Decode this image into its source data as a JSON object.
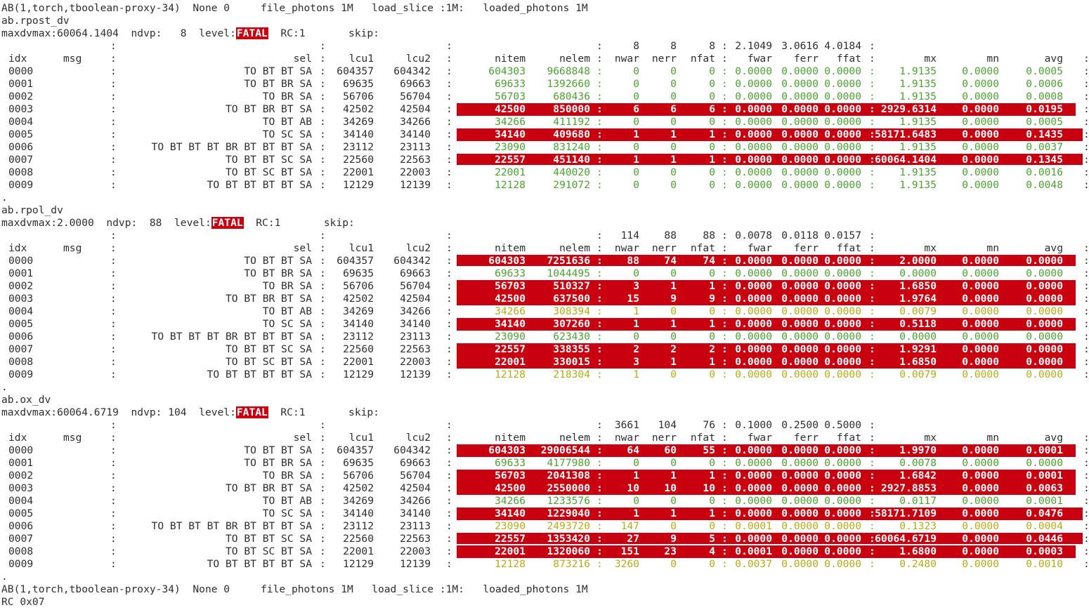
{
  "header": {
    "text": "AB(1,torch,tboolean-proxy-34)  None 0     file_photons 1M   load_slice :1M:   loaded_photons 1M"
  },
  "footer": {
    "text": "AB(1,torch,tboolean-proxy-34)  None 0     file_photons 1M   load_slice :1M:   loaded_photons 1M",
    "rc": "RC 0x07"
  },
  "colors": {
    "fatal_bg": "#c8000f",
    "ok_text": "#4aa32e",
    "warn_text": "#b4ac16"
  },
  "columns": {
    "idx": "idx",
    "msg": "msg",
    "sel": "sel",
    "lcu1": "lcu1",
    "lcu2": "lcu2",
    "nitem": "nitem",
    "nelem": "nelem",
    "nwar": "nwar",
    "nerr": "nerr",
    "nfat": "nfat",
    "fwar": "fwar",
    "ferr": "ferr",
    "ffat": "ffat",
    "mx": "mx",
    "mn": "mn",
    "avg": "avg"
  },
  "sections": [
    {
      "name": "ab.rpost_dv",
      "summary_pre": "maxdvmax:60064.1404  ndvp:   8  level:",
      "level": "FATAL",
      "summary_post": "  RC:1       skip:",
      "limits": {
        "nwar": "8",
        "nerr": "8",
        "nfat": "8",
        "fwar": "2.1049",
        "ferr": "3.0616",
        "ffat": "4.0184"
      },
      "rows": [
        {
          "idx": "0000",
          "sel": "TO BT BT SA",
          "lcu1": "604357",
          "lcu2": "604342",
          "nitem": "604303",
          "nelem": "9668848",
          "nwar": "0",
          "nerr": "0",
          "nfat": "0",
          "fwar": "0.0000",
          "ferr": "0.0000",
          "ffat": "0.0000",
          "mx": "1.9135",
          "mn": "0.0000",
          "avg": "0.0005",
          "status": "ok"
        },
        {
          "idx": "0001",
          "sel": "TO BT BR SA",
          "lcu1": "69635",
          "lcu2": "69663",
          "nitem": "69633",
          "nelem": "1392660",
          "nwar": "0",
          "nerr": "0",
          "nfat": "0",
          "fwar": "0.0000",
          "ferr": "0.0000",
          "ffat": "0.0000",
          "mx": "1.9135",
          "mn": "0.0000",
          "avg": "0.0006",
          "status": "ok"
        },
        {
          "idx": "0002",
          "sel": "TO BR SA",
          "lcu1": "56706",
          "lcu2": "56704",
          "nitem": "56703",
          "nelem": "680436",
          "nwar": "0",
          "nerr": "0",
          "nfat": "0",
          "fwar": "0.0000",
          "ferr": "0.0000",
          "ffat": "0.0000",
          "mx": "1.9135",
          "mn": "0.0000",
          "avg": "0.0008",
          "status": "ok"
        },
        {
          "idx": "0003",
          "sel": "TO BT BR BT SA",
          "lcu1": "42502",
          "lcu2": "42504",
          "nitem": "42500",
          "nelem": "850000",
          "nwar": "6",
          "nerr": "6",
          "nfat": "6",
          "fwar": "0.0000",
          "ferr": "0.0000",
          "ffat": "0.0000",
          "mx": "2929.6314",
          "mn": "0.0000",
          "avg": "0.0195",
          "status": "fatal"
        },
        {
          "idx": "0004",
          "sel": "TO BT AB",
          "lcu1": "34269",
          "lcu2": "34266",
          "nitem": "34266",
          "nelem": "411192",
          "nwar": "0",
          "nerr": "0",
          "nfat": "0",
          "fwar": "0.0000",
          "ferr": "0.0000",
          "ffat": "0.0000",
          "mx": "1.9135",
          "mn": "0.0000",
          "avg": "0.0005",
          "status": "ok"
        },
        {
          "idx": "0005",
          "sel": "TO SC SA",
          "lcu1": "34140",
          "lcu2": "34140",
          "nitem": "34140",
          "nelem": "409680",
          "nwar": "1",
          "nerr": "1",
          "nfat": "1",
          "fwar": "0.0000",
          "ferr": "0.0000",
          "ffat": "0.0000",
          "mx": "58171.6483",
          "mn": "0.0000",
          "avg": "0.1435",
          "status": "fatal",
          "wide": true
        },
        {
          "idx": "0006",
          "sel": "TO BT BT BT BR BT BT BT SA",
          "lcu1": "23112",
          "lcu2": "23113",
          "nitem": "23090",
          "nelem": "831240",
          "nwar": "0",
          "nerr": "0",
          "nfat": "0",
          "fwar": "0.0000",
          "ferr": "0.0000",
          "ffat": "0.0000",
          "mx": "1.9135",
          "mn": "0.0000",
          "avg": "0.0037",
          "status": "ok"
        },
        {
          "idx": "0007",
          "sel": "TO BT BT SC SA",
          "lcu1": "22560",
          "lcu2": "22563",
          "nitem": "22557",
          "nelem": "451140",
          "nwar": "1",
          "nerr": "1",
          "nfat": "1",
          "fwar": "0.0000",
          "ferr": "0.0000",
          "ffat": "0.0000",
          "mx": "60064.1404",
          "mn": "0.0000",
          "avg": "0.1345",
          "status": "fatal",
          "wide": true,
          "uline": true
        },
        {
          "idx": "0008",
          "sel": "TO BT SC BT SA",
          "lcu1": "22001",
          "lcu2": "22003",
          "nitem": "22001",
          "nelem": "440020",
          "nwar": "0",
          "nerr": "0",
          "nfat": "0",
          "fwar": "0.0000",
          "ferr": "0.0000",
          "ffat": "0.0000",
          "mx": "1.9135",
          "mn": "0.0000",
          "avg": "0.0016",
          "status": "ok"
        },
        {
          "idx": "0009",
          "sel": "TO BT BT BT BT SA",
          "lcu1": "12129",
          "lcu2": "12139",
          "nitem": "12128",
          "nelem": "291072",
          "nwar": "0",
          "nerr": "0",
          "nfat": "0",
          "fwar": "0.0000",
          "ferr": "0.0000",
          "ffat": "0.0000",
          "mx": "1.9135",
          "mn": "0.0000",
          "avg": "0.0048",
          "status": "ok"
        }
      ]
    },
    {
      "name": "ab.rpol_dv",
      "summary_pre": "maxdvmax:2.0000  ndvp:  88  level:",
      "level": "FATAL",
      "summary_post": "  RC:1       skip:",
      "limits": {
        "nwar": "114",
        "nerr": "88",
        "nfat": "88",
        "fwar": "0.0078",
        "ferr": "0.0118",
        "ffat": "0.0157"
      },
      "rows": [
        {
          "idx": "0000",
          "sel": "TO BT BT SA",
          "lcu1": "604357",
          "lcu2": "604342",
          "nitem": "604303",
          "nelem": "7251636",
          "nwar": "88",
          "nerr": "74",
          "nfat": "74",
          "fwar": "0.0000",
          "ferr": "0.0000",
          "ffat": "0.0000",
          "mx": "2.0000",
          "mn": "0.0000",
          "avg": "0.0000",
          "status": "fatal",
          "uline": true
        },
        {
          "idx": "0001",
          "sel": "TO BT BR SA",
          "lcu1": "69635",
          "lcu2": "69663",
          "nitem": "69633",
          "nelem": "1044495",
          "nwar": "0",
          "nerr": "0",
          "nfat": "0",
          "fwar": "0.0000",
          "ferr": "0.0000",
          "ffat": "0.0000",
          "mx": "0.0000",
          "mn": "0.0000",
          "avg": "0.0000",
          "status": "ok"
        },
        {
          "idx": "0002",
          "sel": "TO BR SA",
          "lcu1": "56706",
          "lcu2": "56704",
          "nitem": "56703",
          "nelem": "510327",
          "nwar": "3",
          "nerr": "1",
          "nfat": "1",
          "fwar": "0.0000",
          "ferr": "0.0000",
          "ffat": "0.0000",
          "mx": "1.6850",
          "mn": "0.0000",
          "avg": "0.0000",
          "status": "fatal"
        },
        {
          "idx": "0003",
          "sel": "TO BT BR BT SA",
          "lcu1": "42502",
          "lcu2": "42504",
          "nitem": "42500",
          "nelem": "637500",
          "nwar": "15",
          "nerr": "9",
          "nfat": "9",
          "fwar": "0.0000",
          "ferr": "0.0000",
          "ffat": "0.0000",
          "mx": "1.9764",
          "mn": "0.0000",
          "avg": "0.0000",
          "status": "fatal"
        },
        {
          "idx": "0004",
          "sel": "TO BT AB",
          "lcu1": "34269",
          "lcu2": "34266",
          "nitem": "34266",
          "nelem": "308394",
          "nwar": "1",
          "nerr": "0",
          "nfat": "0",
          "fwar": "0.0000",
          "ferr": "0.0000",
          "ffat": "0.0000",
          "mx": "0.0079",
          "mn": "0.0000",
          "avg": "0.0000",
          "status": "warn"
        },
        {
          "idx": "0005",
          "sel": "TO SC SA",
          "lcu1": "34140",
          "lcu2": "34140",
          "nitem": "34140",
          "nelem": "307260",
          "nwar": "1",
          "nerr": "1",
          "nfat": "1",
          "fwar": "0.0000",
          "ferr": "0.0000",
          "ffat": "0.0000",
          "mx": "0.5118",
          "mn": "0.0000",
          "avg": "0.0000",
          "status": "fatal"
        },
        {
          "idx": "0006",
          "sel": "TO BT BT BT BR BT BT BT SA",
          "lcu1": "23112",
          "lcu2": "23113",
          "nitem": "23090",
          "nelem": "623430",
          "nwar": "0",
          "nerr": "0",
          "nfat": "0",
          "fwar": "0.0000",
          "ferr": "0.0000",
          "ffat": "0.0000",
          "mx": "0.0000",
          "mn": "0.0000",
          "avg": "0.0000",
          "status": "ok"
        },
        {
          "idx": "0007",
          "sel": "TO BT BT SC SA",
          "lcu1": "22560",
          "lcu2": "22563",
          "nitem": "22557",
          "nelem": "338355",
          "nwar": "2",
          "nerr": "2",
          "nfat": "2",
          "fwar": "0.0000",
          "ferr": "0.0000",
          "ffat": "0.0000",
          "mx": "1.9291",
          "mn": "0.0000",
          "avg": "0.0000",
          "status": "fatal"
        },
        {
          "idx": "0008",
          "sel": "TO BT SC BT SA",
          "lcu1": "22001",
          "lcu2": "22003",
          "nitem": "22001",
          "nelem": "330015",
          "nwar": "3",
          "nerr": "1",
          "nfat": "1",
          "fwar": "0.0000",
          "ferr": "0.0000",
          "ffat": "0.0000",
          "mx": "1.6850",
          "mn": "0.0000",
          "avg": "0.0000",
          "status": "fatal"
        },
        {
          "idx": "0009",
          "sel": "TO BT BT BT BT SA",
          "lcu1": "12129",
          "lcu2": "12139",
          "nitem": "12128",
          "nelem": "218304",
          "nwar": "1",
          "nerr": "0",
          "nfat": "0",
          "fwar": "0.0000",
          "ferr": "0.0000",
          "ffat": "0.0000",
          "mx": "0.0079",
          "mn": "0.0000",
          "avg": "0.0000",
          "status": "warn"
        }
      ]
    },
    {
      "name": "ab.ox_dv",
      "summary_pre": "maxdvmax:60064.6719  ndvp: 104  level:",
      "level": "FATAL",
      "summary_post": "  RC:1       skip:",
      "limits": {
        "nwar": "3661",
        "nerr": "104",
        "nfat": "76",
        "fwar": "0.1000",
        "ferr": "0.2500",
        "ffat": "0.5000"
      },
      "rows": [
        {
          "idx": "0000",
          "sel": "TO BT BT SA",
          "lcu1": "604357",
          "lcu2": "604342",
          "nitem": "604303",
          "nelem": "29006544",
          "nwar": "64",
          "nerr": "60",
          "nfat": "55",
          "fwar": "0.0000",
          "ferr": "0.0000",
          "ffat": "0.0000",
          "mx": "1.9970",
          "mn": "0.0000",
          "avg": "0.0001",
          "status": "fatal"
        },
        {
          "idx": "0001",
          "sel": "TO BT BR SA",
          "lcu1": "69635",
          "lcu2": "69663",
          "nitem": "69633",
          "nelem": "4177980",
          "nwar": "0",
          "nerr": "0",
          "nfat": "0",
          "fwar": "0.0000",
          "ferr": "0.0000",
          "ffat": "0.0000",
          "mx": "0.0078",
          "mn": "0.0000",
          "avg": "0.0000",
          "status": "ok"
        },
        {
          "idx": "0002",
          "sel": "TO BR SA",
          "lcu1": "56706",
          "lcu2": "56704",
          "nitem": "56703",
          "nelem": "2041308",
          "nwar": "1",
          "nerr": "1",
          "nfat": "1",
          "fwar": "0.0000",
          "ferr": "0.0000",
          "ffat": "0.0000",
          "mx": "1.6842",
          "mn": "0.0000",
          "avg": "0.0001",
          "status": "fatal"
        },
        {
          "idx": "0003",
          "sel": "TO BT BR BT SA",
          "lcu1": "42502",
          "lcu2": "42504",
          "nitem": "42500",
          "nelem": "2550000",
          "nwar": "10",
          "nerr": "10",
          "nfat": "10",
          "fwar": "0.0000",
          "ferr": "0.0000",
          "ffat": "0.0000",
          "mx": "2927.8853",
          "mn": "0.0000",
          "avg": "0.0063",
          "status": "fatal"
        },
        {
          "idx": "0004",
          "sel": "TO BT AB",
          "lcu1": "34269",
          "lcu2": "34266",
          "nitem": "34266",
          "nelem": "1233576",
          "nwar": "0",
          "nerr": "0",
          "nfat": "0",
          "fwar": "0.0000",
          "ferr": "0.0000",
          "ffat": "0.0000",
          "mx": "0.0117",
          "mn": "0.0000",
          "avg": "0.0001",
          "status": "ok"
        },
        {
          "idx": "0005",
          "sel": "TO SC SA",
          "lcu1": "34140",
          "lcu2": "34140",
          "nitem": "34140",
          "nelem": "1229040",
          "nwar": "1",
          "nerr": "1",
          "nfat": "1",
          "fwar": "0.0000",
          "ferr": "0.0000",
          "ffat": "0.0000",
          "mx": "58171.7109",
          "mn": "0.0000",
          "avg": "0.0476",
          "status": "fatal",
          "wide": true
        },
        {
          "idx": "0006",
          "sel": "TO BT BT BT BR BT BT BT SA",
          "lcu1": "23112",
          "lcu2": "23113",
          "nitem": "23090",
          "nelem": "2493720",
          "nwar": "147",
          "nerr": "0",
          "nfat": "0",
          "fwar": "0.0001",
          "ferr": "0.0000",
          "ffat": "0.0000",
          "mx": "0.1323",
          "mn": "0.0000",
          "avg": "0.0004",
          "status": "warn"
        },
        {
          "idx": "0007",
          "sel": "TO BT BT SC SA",
          "lcu1": "22560",
          "lcu2": "22563",
          "nitem": "22557",
          "nelem": "1353420",
          "nwar": "27",
          "nerr": "9",
          "nfat": "5",
          "fwar": "0.0000",
          "ferr": "0.0000",
          "ffat": "0.0000",
          "mx": "60064.6719",
          "mn": "0.0000",
          "avg": "0.0446",
          "status": "fatal",
          "wide": true,
          "uline": true
        },
        {
          "idx": "0008",
          "sel": "TO BT SC BT SA",
          "lcu1": "22001",
          "lcu2": "22003",
          "nitem": "22001",
          "nelem": "1320060",
          "nwar": "151",
          "nerr": "23",
          "nfat": "4",
          "fwar": "0.0001",
          "ferr": "0.0000",
          "ffat": "0.0000",
          "mx": "1.6800",
          "mn": "0.0000",
          "avg": "0.0003",
          "status": "fatal"
        },
        {
          "idx": "0009",
          "sel": "TO BT BT BT BT SA",
          "lcu1": "12129",
          "lcu2": "12139",
          "nitem": "12128",
          "nelem": "873216",
          "nwar": "3260",
          "nerr": "0",
          "nfat": "0",
          "fwar": "0.0037",
          "ferr": "0.0000",
          "ffat": "0.0000",
          "mx": "0.2480",
          "mn": "0.0000",
          "avg": "0.0010",
          "status": "warn"
        }
      ]
    }
  ]
}
